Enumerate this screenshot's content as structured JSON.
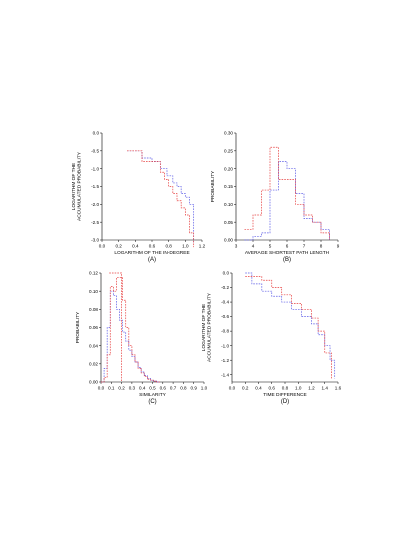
{
  "colors": {
    "blue": "#5a5ae6",
    "red": "#e63c3c"
  },
  "chart_data": [
    {
      "type": "line",
      "panel_label": "(A)",
      "xlabel": "LOGARITHM OF THE IN-DEGREE",
      "ylabel": [
        "LOGARITHM OF THE",
        "ACCUMULATED PROBABILITY"
      ],
      "xlim": [
        0,
        1.2
      ],
      "ylim": [
        -3.0,
        0.0
      ],
      "xticks": [
        "0.0",
        "0.2",
        "0.4",
        "0.6",
        "0.8",
        "1.0",
        "1.2"
      ],
      "yticks": [
        "0.0",
        "-0.5",
        "-1.0",
        "-1.5",
        "-2.0",
        "-2.5",
        "-3.0"
      ],
      "series": [
        {
          "color": "blue",
          "x": [
            0.3,
            0.43,
            0.48,
            0.6,
            0.7,
            0.78,
            0.85,
            0.9,
            0.95,
            1.0,
            1.05,
            1.1,
            1.1
          ],
          "y": [
            -0.5,
            -0.5,
            -0.7,
            -0.8,
            -1.0,
            -1.2,
            -1.4,
            -1.5,
            -1.7,
            -1.8,
            -2.0,
            -2.3,
            -3.1
          ]
        },
        {
          "color": "red",
          "x": [
            0.3,
            0.43,
            0.48,
            0.6,
            0.7,
            0.75,
            0.8,
            0.85,
            0.9,
            0.95,
            1.0,
            1.05,
            1.05,
            1.1,
            1.1
          ],
          "y": [
            -0.5,
            -0.5,
            -0.8,
            -0.8,
            -1.1,
            -1.3,
            -1.5,
            -1.7,
            -1.9,
            -2.1,
            -2.3,
            -2.5,
            -2.8,
            -2.8,
            -3.2
          ]
        }
      ]
    },
    {
      "type": "line",
      "panel_label": "(B)",
      "xlabel": "AVERAGE SHORTEST PATH LENGTH",
      "ylabel": [
        "PROBABILITY"
      ],
      "xlim": [
        3,
        9
      ],
      "ylim": [
        0,
        0.3
      ],
      "xticks": [
        "3",
        "4",
        "5",
        "6",
        "7",
        "8",
        "9"
      ],
      "yticks": [
        "0.00",
        "0.05",
        "0.10",
        "0.15",
        "0.20",
        "0.25",
        "0.30"
      ],
      "series": [
        {
          "color": "blue",
          "x": [
            3.5,
            4,
            4.5,
            5,
            5.5,
            6,
            6.5,
            7,
            7.5,
            8,
            8.5
          ],
          "y": [
            0,
            0.01,
            0.02,
            0.14,
            0.22,
            0.2,
            0.13,
            0.06,
            0.05,
            0.03,
            0
          ]
        },
        {
          "color": "red",
          "x": [
            3.5,
            4,
            4.5,
            5,
            5.5,
            6,
            6.5,
            7,
            7.5,
            8,
            8.5
          ],
          "y": [
            0.03,
            0.07,
            0.14,
            0.26,
            0.17,
            0.17,
            0.1,
            0.07,
            0.05,
            0.02,
            0
          ]
        }
      ]
    },
    {
      "type": "line",
      "panel_label": "(C)",
      "xlabel": "SIMILARITY",
      "ylabel": [
        "PROBABILITY"
      ],
      "xlim": [
        0,
        1.0
      ],
      "ylim": [
        0,
        0.12
      ],
      "xticks": [
        "0.0",
        "0.1",
        "0.2",
        "0.3",
        "0.4",
        "0.5",
        "0.6",
        "0.7",
        "0.8",
        "0.9",
        "1.0"
      ],
      "yticks": [
        "0.00",
        "0.02",
        "0.04",
        "0.06",
        "0.08",
        "0.10",
        "0.12"
      ],
      "series": [
        {
          "color": "blue",
          "x": [
            0,
            0.03,
            0.06,
            0.09,
            0.12,
            0.15,
            0.18,
            0.21,
            0.24,
            0.27,
            0.3,
            0.33,
            0.36,
            0.39,
            0.42,
            0.45,
            0.48,
            0.51,
            0.54,
            0.57
          ],
          "y": [
            0,
            0.015,
            0.06,
            0.1,
            0.095,
            0.08,
            0.068,
            0.055,
            0.045,
            0.035,
            0.028,
            0.022,
            0.016,
            0.011,
            0.007,
            0.004,
            0.002,
            0.001,
            0,
            0
          ]
        },
        {
          "color": "red",
          "x": [
            0,
            0.03,
            0.06,
            0.09,
            0.12,
            0.15,
            0.18,
            0.21,
            0.24,
            0.27,
            0.3,
            0.33,
            0.36,
            0.39,
            0.42,
            0.45,
            0.48,
            0.51,
            0.54,
            0.57
          ],
          "y": [
            0,
            0.005,
            0.03,
            0.105,
            0.1,
            0.115,
            0.115,
            0.09,
            0.06,
            0.04,
            0.03,
            0.022,
            0.015,
            0.01,
            0.006,
            0.003,
            0.002,
            0.001,
            0,
            0
          ]
        },
        {
          "color": "red",
          "x": [
            0.08,
            0.2
          ],
          "y": [
            0.12,
            0.11
          ]
        }
      ]
    },
    {
      "type": "line",
      "panel_label": "(D)",
      "xlabel": "TIME DIFFERENCE",
      "ylabel": [
        "LOGARITHM OF THE",
        "ACCUMULATED PROBABILITY"
      ],
      "xlim": [
        0,
        1.6
      ],
      "ylim": [
        -1.5,
        0.0
      ],
      "xticks": [
        "0.0",
        "0.2",
        "0.4",
        "0.6",
        "0.8",
        "1.0",
        "1.2",
        "1.4",
        "1.6"
      ],
      "yticks": [
        "0.0",
        "-0.2",
        "-0.4",
        "-0.6",
        "-0.8",
        "-1.0",
        "-1.2",
        "-1.4"
      ],
      "series": [
        {
          "color": "blue",
          "x": [
            0.2,
            0.3,
            0.45,
            0.6,
            0.75,
            0.9,
            1.05,
            1.2,
            1.3,
            1.4,
            1.48,
            1.55
          ],
          "y": [
            0.0,
            -0.15,
            -0.25,
            -0.32,
            -0.4,
            -0.5,
            -0.6,
            -0.7,
            -0.85,
            -1.0,
            -1.2,
            -1.45
          ]
        },
        {
          "color": "red",
          "x": [
            0.2,
            0.3,
            0.45,
            0.6,
            0.75,
            0.9,
            1.05,
            1.2,
            1.3,
            1.4,
            1.5
          ],
          "y": [
            -0.05,
            -0.05,
            -0.1,
            -0.2,
            -0.3,
            -0.42,
            -0.5,
            -0.62,
            -0.8,
            -1.1,
            -1.45
          ]
        }
      ]
    }
  ]
}
